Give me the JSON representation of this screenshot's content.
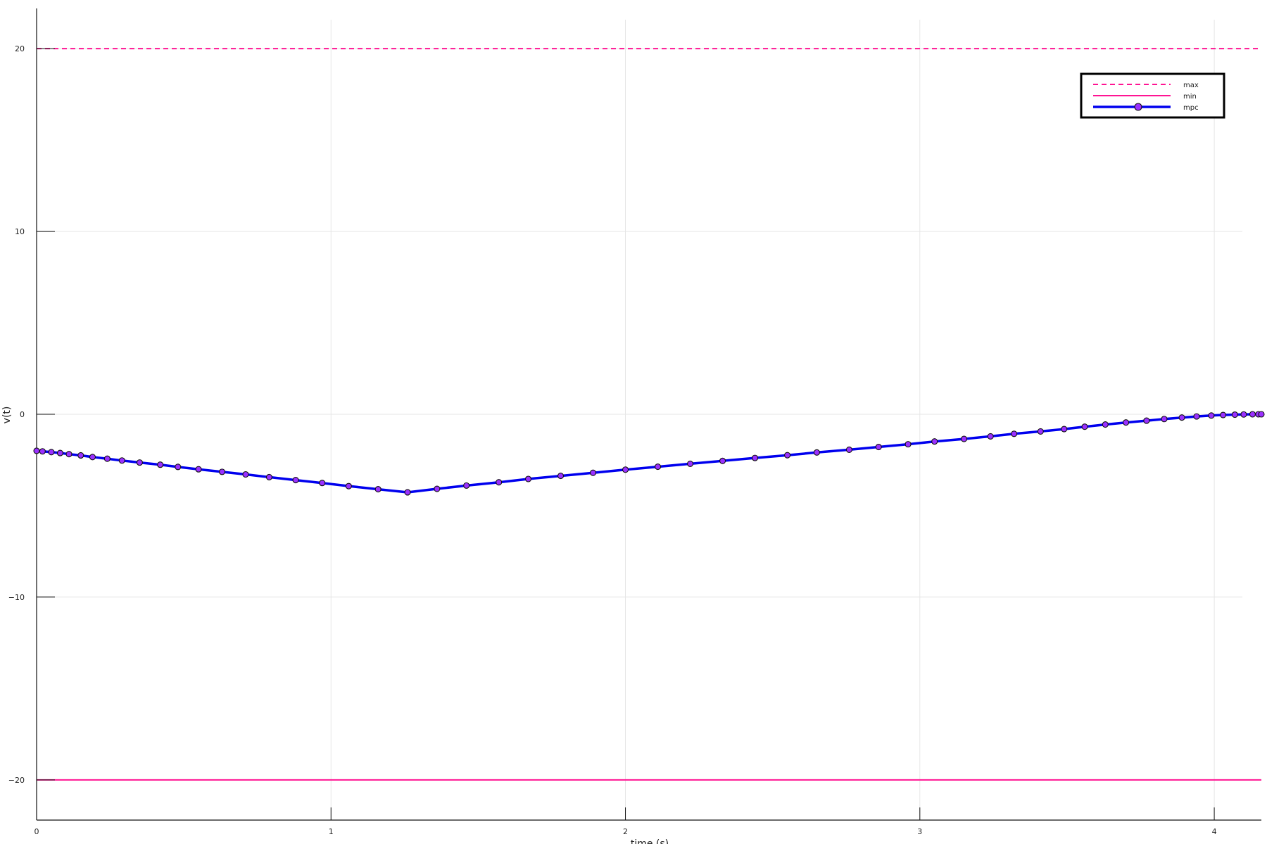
{
  "chart_data": {
    "type": "line",
    "xlabel": "time (s)",
    "ylabel": "v(t)",
    "xlim": [
      0,
      4.16
    ],
    "ylim": [
      -22.2,
      22.2
    ],
    "xticks": [
      0,
      1,
      2,
      3,
      4
    ],
    "yticks": [
      -20,
      -10,
      0,
      10,
      20
    ],
    "xtick_labels": [
      "0",
      "1",
      "2",
      "3",
      "4"
    ],
    "ytick_labels": [
      "−20",
      "−10",
      "0",
      "10",
      "20"
    ],
    "grid": true,
    "legend_position": "top-right",
    "series": [
      {
        "name": "max",
        "style": "dashed",
        "color": "#ff1493",
        "x": [
          0,
          4.16
        ],
        "y": [
          20,
          20
        ]
      },
      {
        "name": "min",
        "style": "solid",
        "color": "#ff1493",
        "x": [
          0,
          4.16
        ],
        "y": [
          -20,
          -20
        ]
      },
      {
        "name": "mpc",
        "style": "solid-markers",
        "color": "#0000ee",
        "marker_color": "#9b30ff",
        "x": [
          0,
          0.02,
          0.05,
          0.08,
          0.11,
          0.15,
          0.19,
          0.24,
          0.29,
          0.35,
          0.42,
          0.48,
          0.55,
          0.63,
          0.71,
          0.79,
          0.88,
          0.97,
          1.06,
          1.16,
          1.26,
          1.36,
          1.46,
          1.57,
          1.67,
          1.78,
          1.89,
          2.0,
          2.11,
          2.22,
          2.33,
          2.44,
          2.55,
          2.65,
          2.76,
          2.86,
          2.96,
          3.05,
          3.15,
          3.24,
          3.32,
          3.41,
          3.49,
          3.56,
          3.63,
          3.7,
          3.77,
          3.83,
          3.89,
          3.94,
          3.99,
          4.03,
          4.07,
          4.1,
          4.13,
          4.15,
          4.16
        ],
        "y": [
          -2.0,
          -2.03,
          -2.07,
          -2.12,
          -2.18,
          -2.25,
          -2.34,
          -2.43,
          -2.53,
          -2.64,
          -2.76,
          -2.88,
          -3.01,
          -3.15,
          -3.29,
          -3.44,
          -3.6,
          -3.76,
          -3.93,
          -4.1,
          -4.27,
          -4.08,
          -3.9,
          -3.72,
          -3.54,
          -3.37,
          -3.2,
          -3.03,
          -2.87,
          -2.71,
          -2.55,
          -2.39,
          -2.24,
          -2.09,
          -1.94,
          -1.79,
          -1.64,
          -1.49,
          -1.35,
          -1.21,
          -1.07,
          -0.94,
          -0.81,
          -0.68,
          -0.56,
          -0.45,
          -0.35,
          -0.26,
          -0.18,
          -0.12,
          -0.07,
          -0.04,
          -0.02,
          -0.01,
          0.0,
          0.0,
          0.0
        ]
      }
    ]
  }
}
